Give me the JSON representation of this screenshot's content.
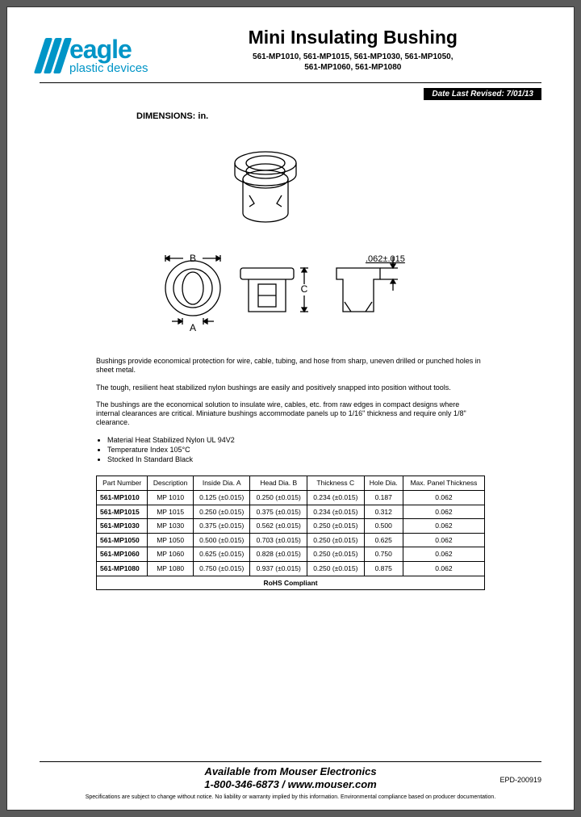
{
  "logo": {
    "name": "eagle",
    "sub": "plastic devices",
    "bar_color": "#0095c7"
  },
  "title": "Mini Insulating Bushing",
  "part_line1": "561-MP1010, 561-MP1015, 561-MP1030, 561-MP1050,",
  "part_line2": "561-MP1060, 561-MP1080",
  "date_revised_label": "Date Last Revised:  7/01/13",
  "dimensions_label": "DIMENSIONS: in.",
  "diagram": {
    "label_A": "A",
    "label_B": "B",
    "label_C": "C",
    "tolerance_label": ".062±.015"
  },
  "paragraphs": [
    "Bushings provide economical protection for wire, cable, tubing, and hose from sharp, uneven drilled or punched holes in sheet metal.",
    "The tough, resilient heat stabilized nylon bushings are easily and positively snapped into position without tools.",
    "The bushings are the economical solution to insulate wire, cables, etc. from raw edges in compact designs where internal clearances are critical. Miniature bushings accommodate panels up to 1/16\" thickness and require only 1/8\" clearance."
  ],
  "bullets": [
    "Material Heat Stabilized Nylon UL 94V2",
    "Temperature Index 105°C",
    "Stocked In Standard Black"
  ],
  "table": {
    "columns": [
      "Part Number",
      "Description",
      "Inside Dia. A",
      "Head Dia. B",
      "Thickness C",
      "Hole Dia.",
      "Max. Panel Thickness"
    ],
    "rows": [
      [
        "561-MP1010",
        "MP 1010",
        "0.125 (±0.015)",
        "0.250 (±0.015)",
        "0.234 (±0.015)",
        "0.187",
        "0.062"
      ],
      [
        "561-MP1015",
        "MP 1015",
        "0.250 (±0.015)",
        "0.375 (±0.015)",
        "0.234 (±0.015)",
        "0.312",
        "0.062"
      ],
      [
        "561-MP1030",
        "MP 1030",
        "0.375 (±0.015)",
        "0.562 (±0.015)",
        "0.250 (±0.015)",
        "0.500",
        "0.062"
      ],
      [
        "561-MP1050",
        "MP 1050",
        "0.500 (±0.015)",
        "0.703 (±0.015)",
        "0.250 (±0.015)",
        "0.625",
        "0.062"
      ],
      [
        "561-MP1060",
        "MP 1060",
        "0.625 (±0.015)",
        "0.828 (±0.015)",
        "0.250 (±0.015)",
        "0.750",
        "0.062"
      ],
      [
        "561-MP1080",
        "MP 1080",
        "0.750 (±0.015)",
        "0.937 (±0.015)",
        "0.250 (±0.015)",
        "0.875",
        "0.062"
      ]
    ],
    "rohs": "RoHS Compliant"
  },
  "footer": {
    "src1": "Available from Mouser Electronics",
    "src2": "1-800-346-6873 / www.mouser.com",
    "epd": "EPD-200919",
    "disclaimer": "Specifications are subject to change without notice.    No liability or warranty implied by this information.    Environmental compliance based on producer documentation."
  }
}
